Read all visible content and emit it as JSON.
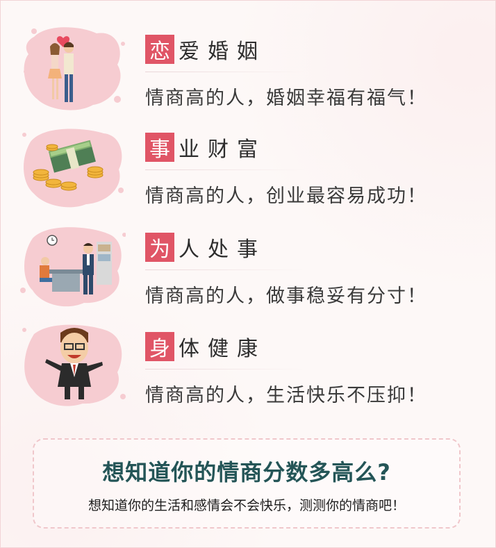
{
  "sections": [
    {
      "title_first": "恋",
      "title_rest": "爱婚姻",
      "desc": "情商高的人，婚姻幸福有福气！",
      "illustration": "couple-kiss-illustration"
    },
    {
      "title_first": "事",
      "title_rest": "业财富",
      "desc": "情商高的人，创业最容易成功！",
      "illustration": "money-coins-illustration"
    },
    {
      "title_first": "为",
      "title_rest": "人处事",
      "desc": "情商高的人，做事稳妥有分寸！",
      "illustration": "office-meeting-illustration"
    },
    {
      "title_first": "身",
      "title_rest": "体健康",
      "desc": "情商高的人，生活快乐不压抑！",
      "illustration": "happy-man-illustration"
    }
  ],
  "cta": {
    "title": "想知道你的情商分数多高么?",
    "subtitle": "想知道你的生活和感情会不会快乐，测测你的情商吧！"
  },
  "colors": {
    "accent": "#e05566",
    "cta_title": "#245557",
    "splash": "#f6ccd1"
  }
}
